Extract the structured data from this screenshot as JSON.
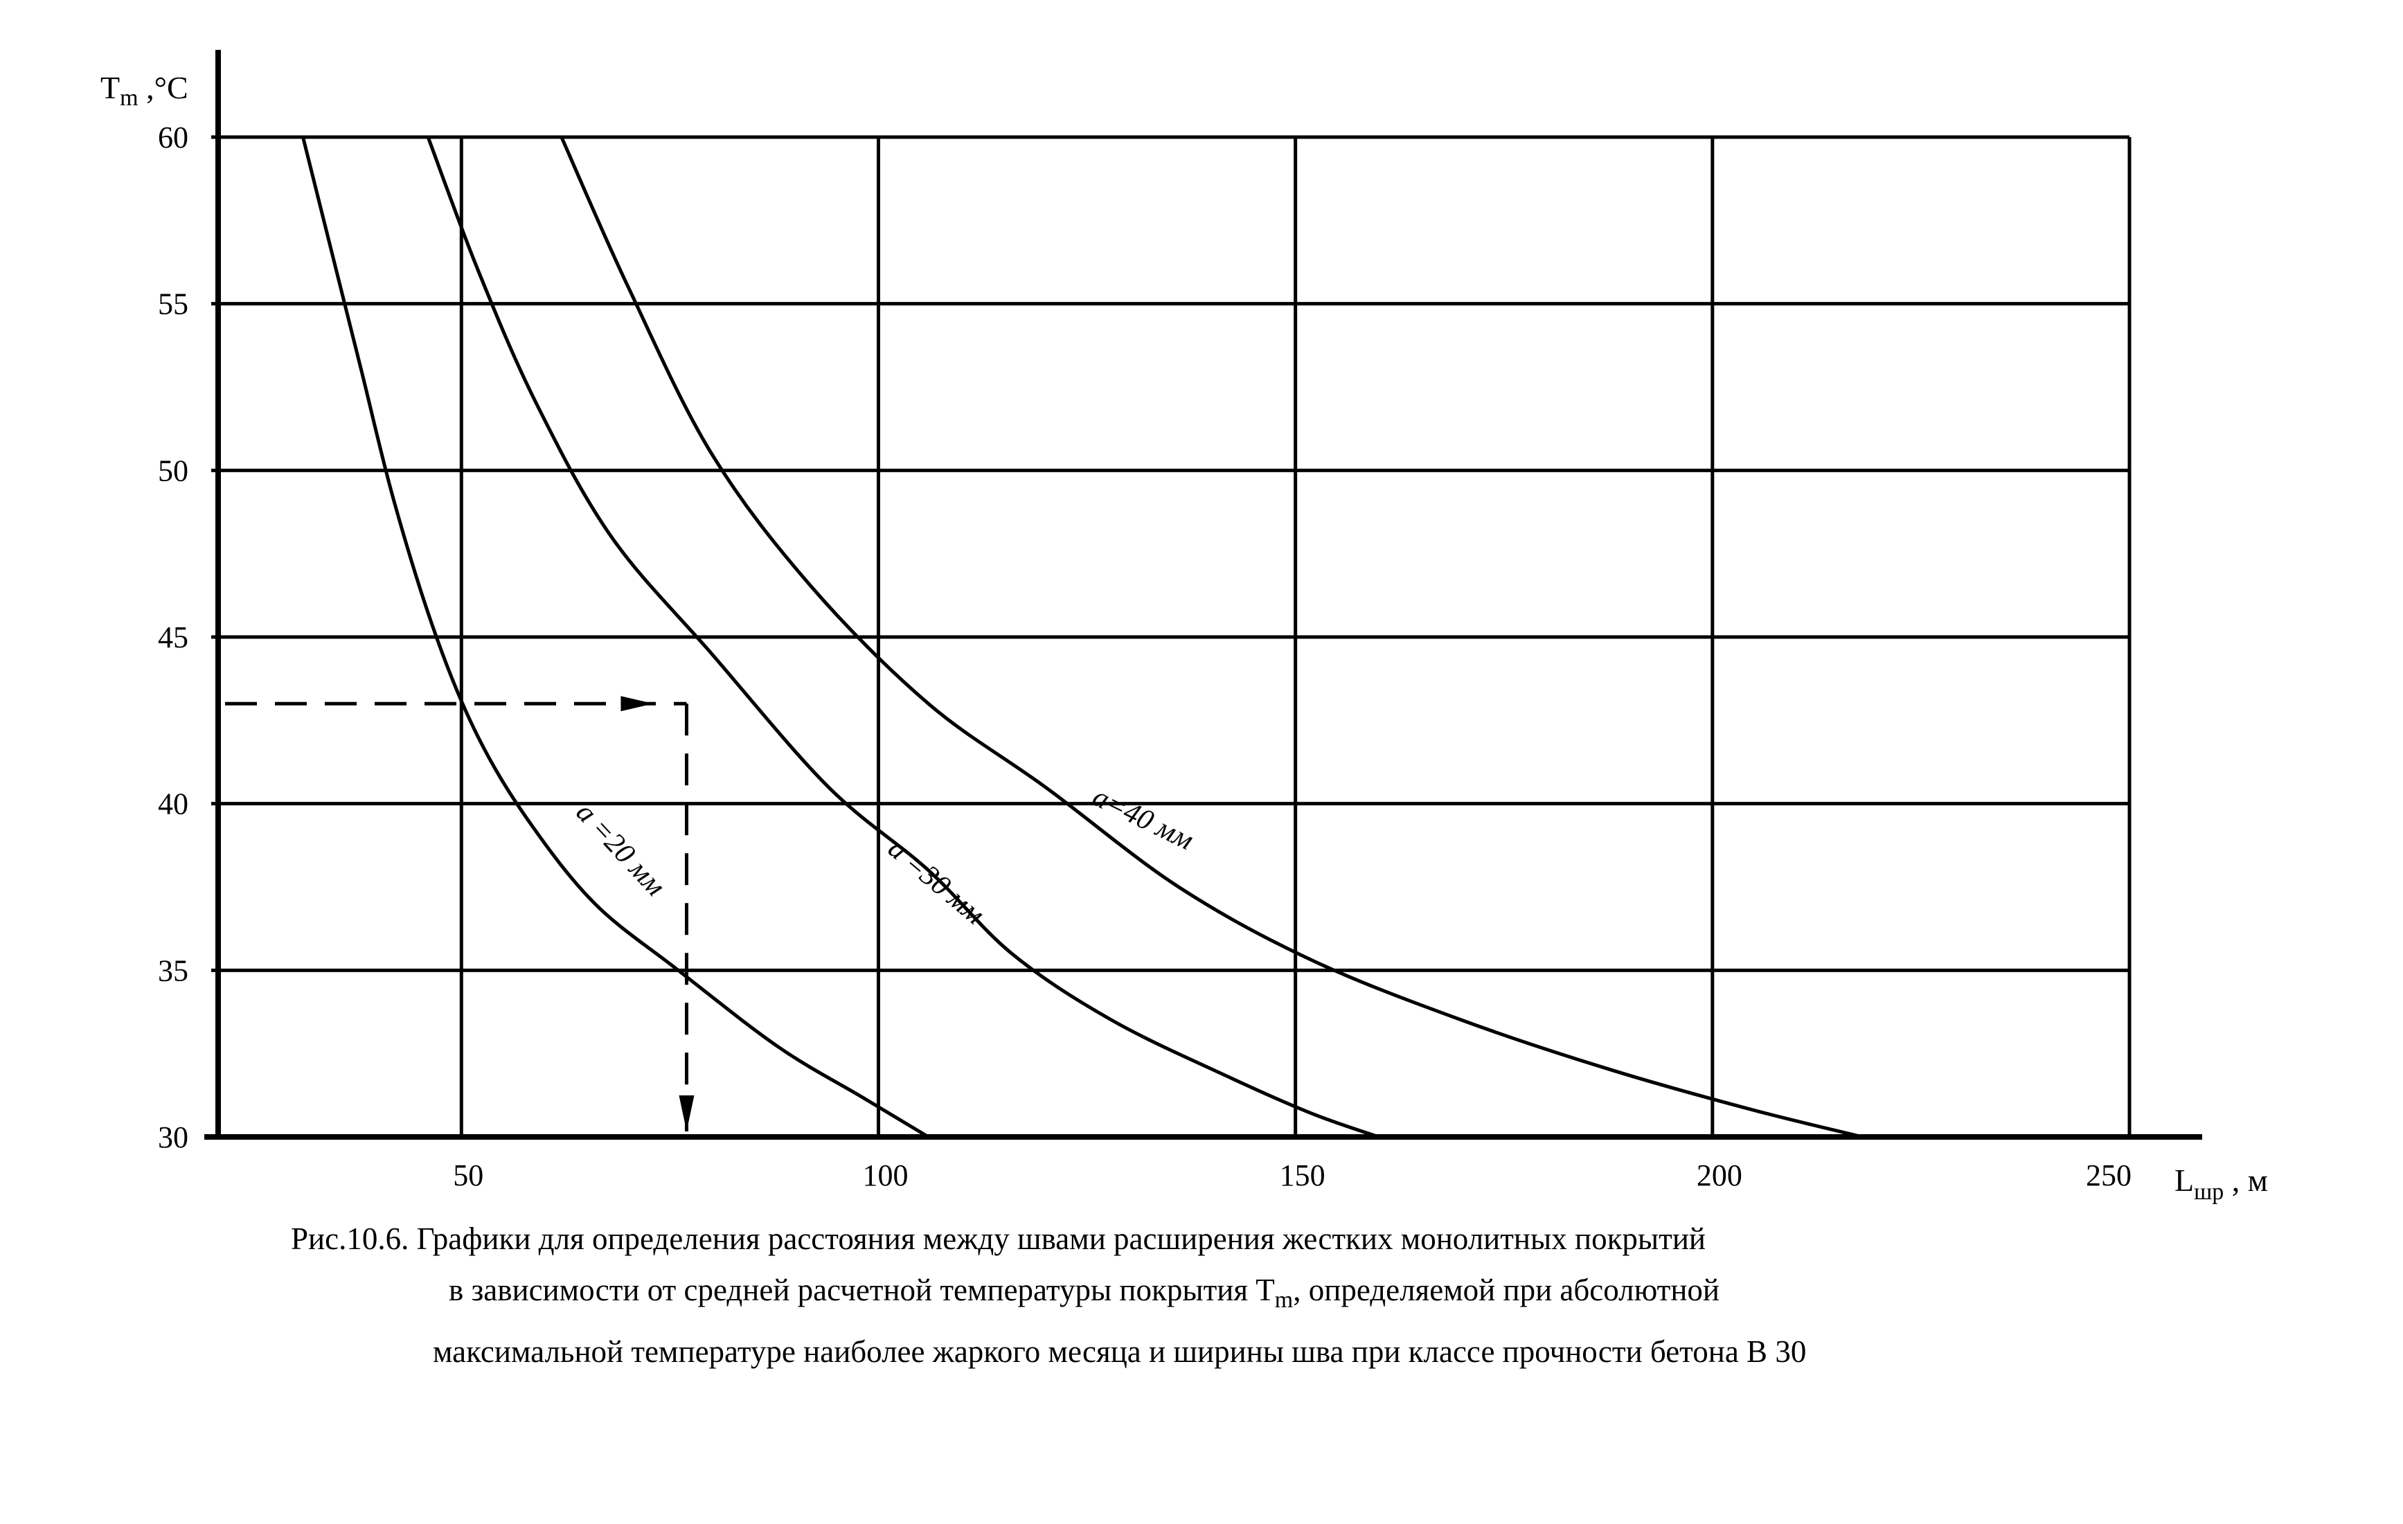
{
  "chart_data": {
    "type": "line",
    "ylabel_main": "T",
    "ylabel_sub": "m",
    "ylabel_unit": " ,°C",
    "xlabel_main": "L",
    "xlabel_sub": "шр",
    "xlabel_unit": " , м",
    "xlim": [
      20,
      250
    ],
    "ylim": [
      30,
      60
    ],
    "x_ticks": [
      50,
      100,
      150,
      200,
      250
    ],
    "x_grid": [
      50,
      100,
      150,
      200,
      250
    ],
    "y_ticks": [
      30,
      35,
      40,
      45,
      50,
      55,
      60
    ],
    "grid": true,
    "series": [
      {
        "name": "a =20 мм",
        "x": [
          31,
          34,
          38,
          42,
          47,
          52,
          58,
          66,
          76,
          88,
          98,
          106
        ],
        "y": [
          60,
          57,
          53,
          49,
          45,
          42,
          39.5,
          37,
          35,
          32.7,
          31.2,
          30
        ]
      },
      {
        "name": "a =30 мм",
        "x": [
          46,
          52,
          59,
          68,
          80,
          94,
          106,
          116,
          128,
          142,
          152,
          160
        ],
        "y": [
          60,
          56,
          52,
          48,
          44.5,
          40.5,
          38,
          35.5,
          33.5,
          31.8,
          30.7,
          30
        ]
      },
      {
        "name": "a=40 мм",
        "x": [
          62,
          70,
          80,
          92,
          106,
          120,
          136,
          152,
          170,
          188,
          205,
          218
        ],
        "y": [
          60,
          55.5,
          50.5,
          46.5,
          43,
          40.5,
          37.5,
          35.3,
          33.5,
          32,
          30.8,
          30
        ]
      }
    ],
    "annotation": {
      "style": "dashed-arrow",
      "from_y": 43,
      "to_x": 77,
      "to_y": 30
    }
  },
  "caption": {
    "line1": "Рис.10.6. Графики для определения расстояния между швами расширения  жестких монолитных покрытий",
    "line2": "в зависимости от средней расчетной температуры покрытия  T",
    "line2_sub": "m",
    "line2_rest": ",  определяемой при  абсолютной",
    "line3": "максимальной  температуре наиболее жаркого месяца и ширины шва при классе прочности бетона В 30"
  }
}
